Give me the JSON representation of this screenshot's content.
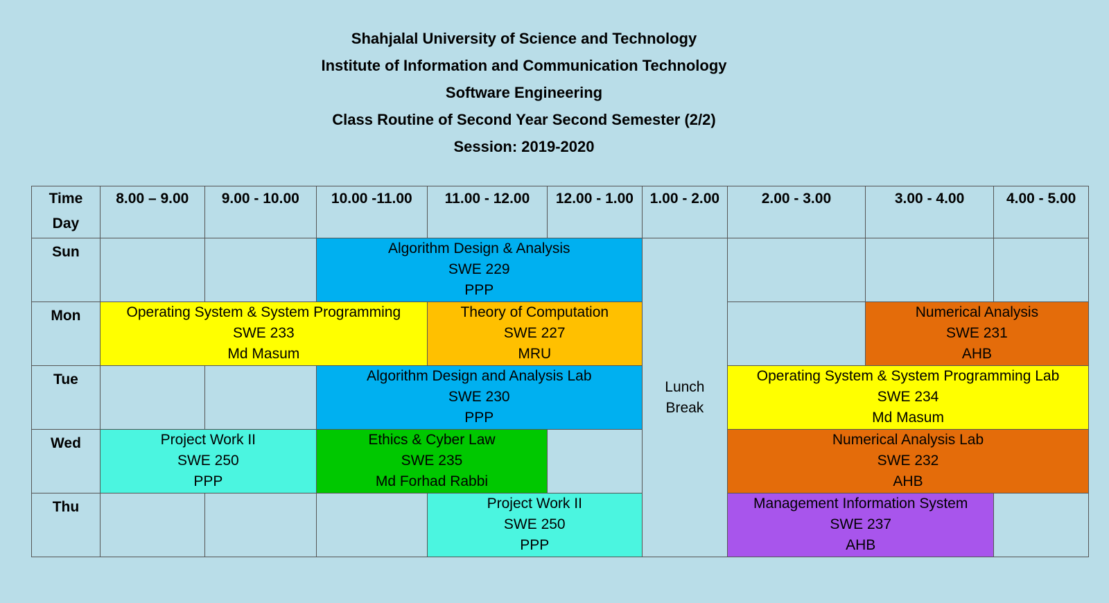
{
  "header": {
    "university": "Shahjalal University of Science and Technology",
    "institute": "Institute of Information and Communication Technology",
    "department": "Software Engineering",
    "routine": "Class Routine of Second Year Second Semester (2/2)",
    "session": "Session: 2019-2020"
  },
  "table": {
    "corner": {
      "time": "Time",
      "day": "Day"
    },
    "slots": [
      "8.00 – 9.00",
      "9.00 - 10.00",
      "10.00 -11.00",
      "11.00 - 12.00",
      "12.00 - 1.00",
      "1.00 - 2.00",
      "2.00 - 3.00",
      "3.00 - 4.00",
      "4.00 - 5.00"
    ],
    "days": [
      "Sun",
      "Mon",
      "Tue",
      "Wed",
      "Thu"
    ],
    "lunch": "Lunch\nBreak",
    "classes": {
      "sun_ada": {
        "title": "Algorithm Design & Analysis",
        "code": "SWE 229",
        "teacher": "PPP"
      },
      "mon_os": {
        "title": "Operating System & System Programming",
        "code": "SWE 233",
        "teacher": "Md Masum"
      },
      "mon_toc": {
        "title": "Theory of Computation",
        "code": "SWE 227",
        "teacher": "MRU"
      },
      "mon_na": {
        "title": "Numerical Analysis",
        "code": "SWE 231",
        "teacher": "AHB"
      },
      "tue_adal": {
        "title": "Algorithm Design and Analysis Lab",
        "code": "SWE 230",
        "teacher": "PPP"
      },
      "tue_osl": {
        "title": "Operating System & System Programming Lab",
        "code": "SWE 234",
        "teacher": "Md Masum"
      },
      "wed_pw": {
        "title": "Project Work II",
        "code": "SWE 250",
        "teacher": "PPP"
      },
      "wed_ecl": {
        "title": "Ethics & Cyber Law",
        "code": "SWE 235",
        "teacher": "Md Forhad Rabbi"
      },
      "wed_nal": {
        "title": "Numerical Analysis Lab",
        "code": "SWE 232",
        "teacher": "AHB"
      },
      "thu_pw": {
        "title": "Project Work II",
        "code": "SWE 250",
        "teacher": "PPP"
      },
      "thu_mis": {
        "title": "Management Information System",
        "code": "SWE 237",
        "teacher": "AHB"
      }
    }
  },
  "colors": {
    "background": "#b9dde8",
    "blue": "#00b0f0",
    "yellow": "#ffff00",
    "amber": "#ffc000",
    "orange": "#e46c0a",
    "teal": "#4bf5e0",
    "green": "#00c800",
    "purple": "#a855ec"
  }
}
